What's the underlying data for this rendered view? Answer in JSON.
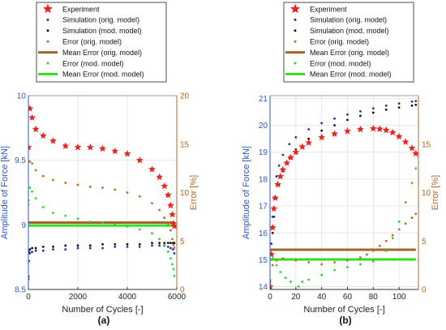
{
  "colors": {
    "experiment": "#e8251c",
    "sim_orig": "#1f2fbf",
    "sim_mod": "#111111",
    "err_orig": "#c46a1e",
    "mean_err_orig": "#a0652a",
    "err_mod": "#22dd22",
    "mean_err_mod": "#33dd22",
    "left_axis": "#2b57c9",
    "right_axis": "#b4642a",
    "grid": "#e2e2e2"
  },
  "chart_data": [
    {
      "type": "scatter",
      "panel_label": "(a)",
      "xlabel": "Number of Cycles [-]",
      "ylabel": "Amplitude of Force [kN]",
      "y2label": "Error [%]",
      "xlim": [
        0,
        6000
      ],
      "ylim": [
        8.5,
        10
      ],
      "y2lim": [
        0,
        20
      ],
      "grid": true,
      "legend_placement": "above plot",
      "xticks": [
        "0",
        "2000",
        "4000",
        "6000"
      ],
      "yticks": [
        "8.5",
        "9",
        "9.5",
        "10"
      ],
      "y2ticks": [
        "0",
        "5",
        "10",
        "15",
        "20"
      ],
      "series": [
        {
          "name": "Experiment",
          "axis": "left",
          "marker": "star",
          "x": [
            0,
            60,
            150,
            300,
            600,
            1000,
            1500,
            2000,
            2500,
            3000,
            3500,
            4000,
            4500,
            5000,
            5300,
            5500,
            5650,
            5750,
            5820,
            5870,
            5900
          ],
          "y": [
            9.6,
            9.9,
            9.83,
            9.74,
            9.69,
            9.65,
            9.61,
            9.6,
            9.6,
            9.59,
            9.57,
            9.55,
            9.5,
            9.43,
            9.37,
            9.3,
            9.23,
            9.15,
            9.08,
            9.01,
            8.99
          ]
        },
        {
          "name": "Simulation (orig. model)",
          "axis": "left",
          "marker": "dot",
          "x": [
            0,
            20,
            60,
            150,
            300,
            600,
            1000,
            1500,
            2000,
            2500,
            3000,
            3500,
            4000,
            4500,
            5000,
            5300,
            5500,
            5650,
            5750,
            5850,
            5900
          ],
          "y": [
            8.58,
            8.72,
            8.78,
            8.79,
            8.8,
            8.8,
            8.81,
            8.81,
            8.82,
            8.82,
            8.82,
            8.83,
            8.83,
            8.83,
            8.84,
            8.84,
            8.84,
            8.83,
            8.82,
            8.81,
            8.78
          ]
        },
        {
          "name": "Simulation (mod. model)",
          "axis": "left",
          "marker": "dot",
          "x": [
            0,
            20,
            60,
            150,
            300,
            600,
            1000,
            1500,
            2000,
            2500,
            3000,
            3500,
            4000,
            4500,
            5000,
            5300,
            5500,
            5650,
            5750,
            5850,
            5900
          ],
          "y": [
            8.6,
            8.79,
            8.81,
            8.82,
            8.82,
            8.83,
            8.83,
            8.84,
            8.84,
            8.84,
            8.85,
            8.85,
            8.85,
            8.85,
            8.86,
            8.86,
            8.86,
            8.86,
            8.86,
            8.86,
            8.86
          ]
        },
        {
          "name": "Error (orig. model)",
          "axis": "right",
          "marker": "dot",
          "x": [
            0,
            60,
            150,
            300,
            600,
            1000,
            1500,
            2000,
            2500,
            3000,
            3500,
            4000,
            4500,
            5000,
            5300,
            5500,
            5650,
            5750,
            5820,
            5870,
            5900
          ],
          "y": [
            9.2,
            13.2,
            13.0,
            12.3,
            11.7,
            11.3,
            11.0,
            10.8,
            10.6,
            10.5,
            10.3,
            10.0,
            9.6,
            8.9,
            8.2,
            7.4,
            6.8,
            6.1,
            5.2,
            4.6,
            4.3
          ]
        },
        {
          "name": "Mean Error (orig. model)",
          "axis": "right",
          "marker": "line",
          "x": [
            0,
            5900
          ],
          "y": [
            6.9,
            6.9
          ]
        },
        {
          "name": "Error (mod. model)",
          "axis": "right",
          "marker": "dot",
          "x": [
            0,
            60,
            150,
            300,
            600,
            1000,
            1500,
            2000,
            2500,
            3000,
            3500,
            4000,
            4500,
            5000,
            5300,
            5500,
            5650,
            5750,
            5820,
            5870,
            5900
          ],
          "y": [
            8.8,
            10.5,
            10.1,
            9.4,
            8.5,
            7.9,
            7.6,
            7.3,
            7.0,
            6.9,
            6.7,
            6.5,
            6.2,
            5.8,
            5.2,
            4.6,
            3.9,
            3.2,
            2.6,
            2.1,
            1.4
          ]
        },
        {
          "name": "Mean Error (mod. model)",
          "axis": "right",
          "marker": "line",
          "x": [
            0,
            5900
          ],
          "y": [
            6.6,
            6.6
          ]
        }
      ]
    },
    {
      "type": "scatter",
      "panel_label": "(b)",
      "xlabel": "Number of Cycles [-]",
      "ylabel": "Amplitude of Force [kN]",
      "y2label": "Error [%]",
      "xlim": [
        0,
        115
      ],
      "ylim": [
        13.9,
        21.1
      ],
      "y2lim": [
        0,
        20
      ],
      "grid": true,
      "legend_placement": "above plot",
      "xticks": [
        "0",
        "20",
        "40",
        "60",
        "80",
        "100"
      ],
      "yticks": [
        "14",
        "15",
        "16",
        "17",
        "18",
        "19",
        "20",
        "21"
      ],
      "y2ticks": [
        "0",
        "5",
        "10",
        "15"
      ],
      "series": [
        {
          "name": "Experiment",
          "axis": "left",
          "marker": "star",
          "x": [
            0,
            1,
            2,
            3,
            4,
            6,
            8,
            10,
            13,
            16,
            20,
            25,
            30,
            40,
            50,
            60,
            70,
            80,
            85,
            90,
            95,
            100,
            105,
            110,
            113
          ],
          "y": [
            14.0,
            15.2,
            16.2,
            16.9,
            17.3,
            17.8,
            18.1,
            18.35,
            18.6,
            18.8,
            19.0,
            19.2,
            19.35,
            19.55,
            19.68,
            19.78,
            19.85,
            19.88,
            19.86,
            19.82,
            19.73,
            19.58,
            19.38,
            19.15,
            18.95
          ]
        },
        {
          "name": "Simulation (orig. model)",
          "axis": "left",
          "marker": "dot",
          "x": [
            0,
            1,
            2,
            3,
            5,
            7,
            10,
            15,
            20,
            30,
            40,
            50,
            60,
            70,
            80,
            90,
            100,
            110,
            113
          ],
          "y": [
            14.2,
            15.6,
            16.6,
            17.3,
            18.1,
            18.5,
            18.9,
            19.3,
            19.55,
            19.85,
            20.08,
            20.25,
            20.4,
            20.52,
            20.63,
            20.73,
            20.81,
            20.88,
            20.9
          ]
        },
        {
          "name": "Simulation (mod. model)",
          "axis": "left",
          "marker": "dot",
          "x": [
            0,
            1,
            2,
            3,
            5,
            7,
            10,
            15,
            20,
            30,
            40,
            50,
            60,
            70,
            80,
            90,
            100,
            110,
            113
          ],
          "y": [
            14.1,
            15.2,
            16.0,
            16.6,
            17.3,
            17.8,
            18.3,
            18.8,
            19.1,
            19.5,
            19.8,
            20.0,
            20.2,
            20.35,
            20.47,
            20.58,
            20.66,
            20.73,
            20.76
          ]
        },
        {
          "name": "Error (orig. model)",
          "axis": "right",
          "marker": "dot",
          "x": [
            0,
            2,
            5,
            10,
            20,
            30,
            40,
            50,
            60,
            70,
            75,
            80,
            85,
            90,
            95,
            100,
            105,
            110,
            113
          ],
          "y": [
            0.5,
            2.5,
            3.0,
            3.2,
            3.0,
            2.8,
            2.6,
            2.8,
            3.0,
            3.3,
            3.6,
            4.0,
            4.5,
            5.0,
            5.6,
            6.2,
            6.8,
            7.4,
            7.8
          ]
        },
        {
          "name": "Mean Error (orig. model)",
          "axis": "right",
          "marker": "line",
          "x": [
            0,
            113
          ],
          "y": [
            4.1,
            4.1
          ]
        },
        {
          "name": "Error (mod. model)",
          "axis": "right",
          "marker": "dot",
          "x": [
            0,
            2,
            5,
            8,
            12,
            16,
            20,
            22,
            25,
            30,
            40,
            50,
            60,
            70,
            80,
            85,
            90,
            95,
            100,
            105,
            110,
            113
          ],
          "y": [
            1.0,
            3.2,
            2.5,
            1.8,
            1.2,
            0.8,
            0.0,
            0.3,
            0.8,
            1.0,
            1.5,
            2.0,
            2.3,
            2.6,
            2.9,
            3.1,
            4.0,
            5.3,
            7.0,
            9.0,
            11.0,
            12.5
          ]
        },
        {
          "name": "Mean Error (mod. model)",
          "axis": "right",
          "marker": "line",
          "x": [
            0,
            113
          ],
          "y": [
            3.1,
            3.1
          ]
        }
      ]
    }
  ]
}
